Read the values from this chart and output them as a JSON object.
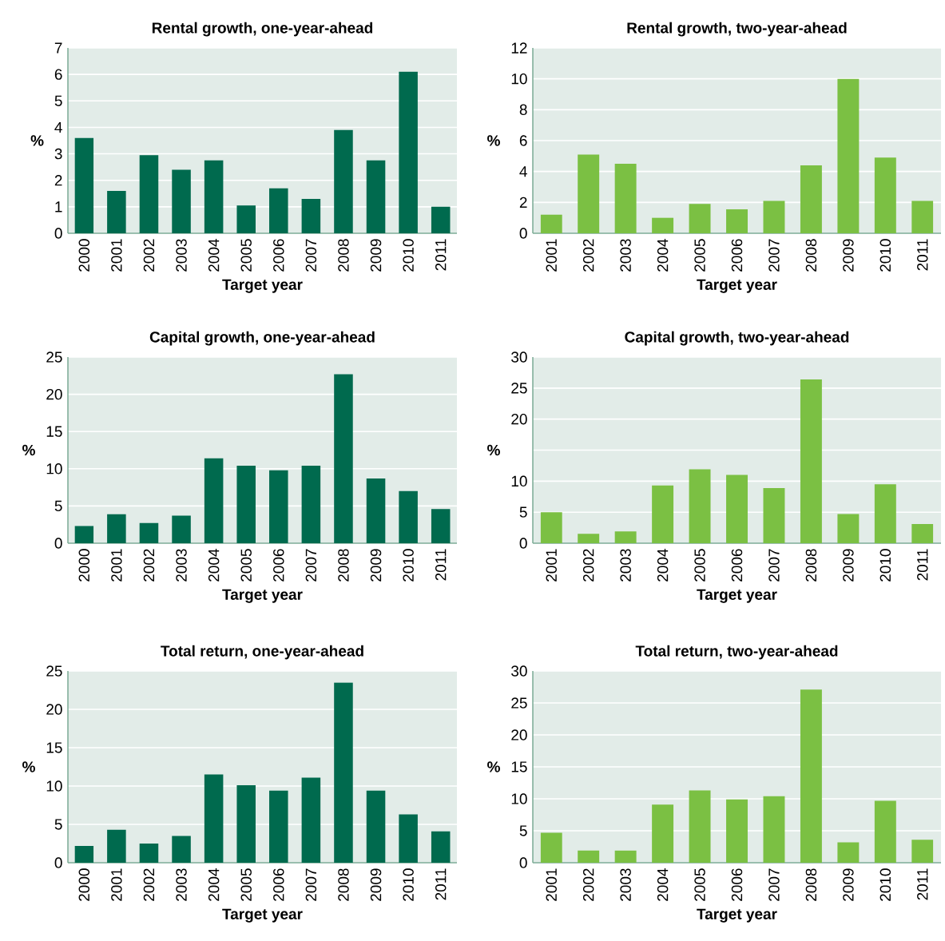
{
  "chart_data": [
    {
      "type": "bar",
      "title": "Rental growth, one-year-ahead",
      "xlabel": "Target year",
      "ylabel": "%",
      "color": "#006a4e",
      "grid": "y",
      "categories": [
        "2000",
        "2001",
        "2002",
        "2003",
        "2004",
        "2005",
        "2006",
        "2007",
        "2008",
        "2009",
        "2010",
        "2011"
      ],
      "values": [
        3.6,
        1.6,
        2.95,
        2.4,
        2.75,
        1.05,
        1.7,
        1.3,
        3.9,
        2.75,
        6.1,
        1.0
      ],
      "ylim": [
        0,
        7
      ],
      "yticks": [
        0,
        1,
        2,
        3,
        4,
        5,
        6,
        7
      ]
    },
    {
      "type": "bar",
      "title": "Rental growth, two-year-ahead",
      "xlabel": "Target year",
      "ylabel": "%",
      "color": "#7bc043",
      "grid": "y",
      "categories": [
        "2001",
        "2002",
        "2003",
        "2004",
        "2005",
        "2006",
        "2007",
        "2008",
        "2009",
        "2010",
        "2011"
      ],
      "values": [
        1.2,
        5.1,
        4.5,
        1.0,
        1.9,
        1.55,
        2.1,
        4.4,
        10.0,
        4.9,
        2.1
      ],
      "ylim": [
        0,
        12
      ],
      "yticks": [
        0,
        2,
        4,
        6,
        8,
        10,
        12
      ]
    },
    {
      "type": "bar",
      "title": "Capital growth, one-year-ahead",
      "xlabel": "Target year",
      "ylabel": "%",
      "color": "#006a4e",
      "grid": "y",
      "categories": [
        "2000",
        "2001",
        "2002",
        "2003",
        "2004",
        "2005",
        "2006",
        "2007",
        "2008",
        "2009",
        "2010",
        "2011"
      ],
      "values": [
        2.3,
        3.9,
        2.7,
        3.7,
        11.4,
        10.4,
        9.8,
        10.4,
        22.7,
        8.7,
        7.0,
        4.6
      ],
      "ylim": [
        0,
        25
      ],
      "yticks": [
        0,
        5,
        10,
        15,
        20,
        25
      ]
    },
    {
      "type": "bar",
      "title": "Capital growth, two-year-ahead",
      "xlabel": "Target year",
      "ylabel": "%",
      "color": "#7bc043",
      "grid": "y",
      "categories": [
        "2001",
        "2002",
        "2003",
        "2004",
        "2005",
        "2006",
        "2007",
        "2008",
        "2009",
        "2010",
        "2011"
      ],
      "values": [
        5.0,
        1.5,
        1.9,
        9.3,
        11.9,
        11.0,
        8.9,
        26.4,
        4.7,
        9.5,
        3.1
      ],
      "ylim": [
        0,
        30
      ],
      "yticks": [
        0,
        5,
        10,
        {
          "value": 15,
          "label": null
        },
        20,
        25,
        30
      ]
    },
    {
      "type": "bar",
      "title": "Total return, one-year-ahead",
      "xlabel": "Target year",
      "ylabel": "%",
      "color": "#006a4e",
      "grid": "y",
      "categories": [
        "2000",
        "2001",
        "2002",
        "2003",
        "2004",
        "2005",
        "2006",
        "2007",
        "2008",
        "2009",
        "2010",
        "2011"
      ],
      "values": [
        2.2,
        4.3,
        2.5,
        3.5,
        11.5,
        10.1,
        9.4,
        11.1,
        23.5,
        9.4,
        6.3,
        4.1
      ],
      "ylim": [
        0,
        25
      ],
      "yticks": [
        0,
        5,
        10,
        15,
        20,
        25
      ]
    },
    {
      "type": "bar",
      "title": "Total return, two-year-ahead",
      "xlabel": "Target year",
      "ylabel": "%",
      "color": "#7bc043",
      "grid": "y",
      "categories": [
        "2001",
        "2002",
        "2003",
        "2004",
        "2005",
        "2006",
        "2007",
        "2008",
        "2009",
        "2010",
        "2011"
      ],
      "values": [
        4.7,
        1.9,
        1.9,
        9.1,
        11.3,
        9.9,
        10.4,
        27.1,
        3.2,
        9.7,
        3.6
      ],
      "ylim": [
        0,
        30
      ],
      "yticks": [
        0,
        5,
        10,
        15,
        20,
        25,
        30
      ]
    }
  ]
}
